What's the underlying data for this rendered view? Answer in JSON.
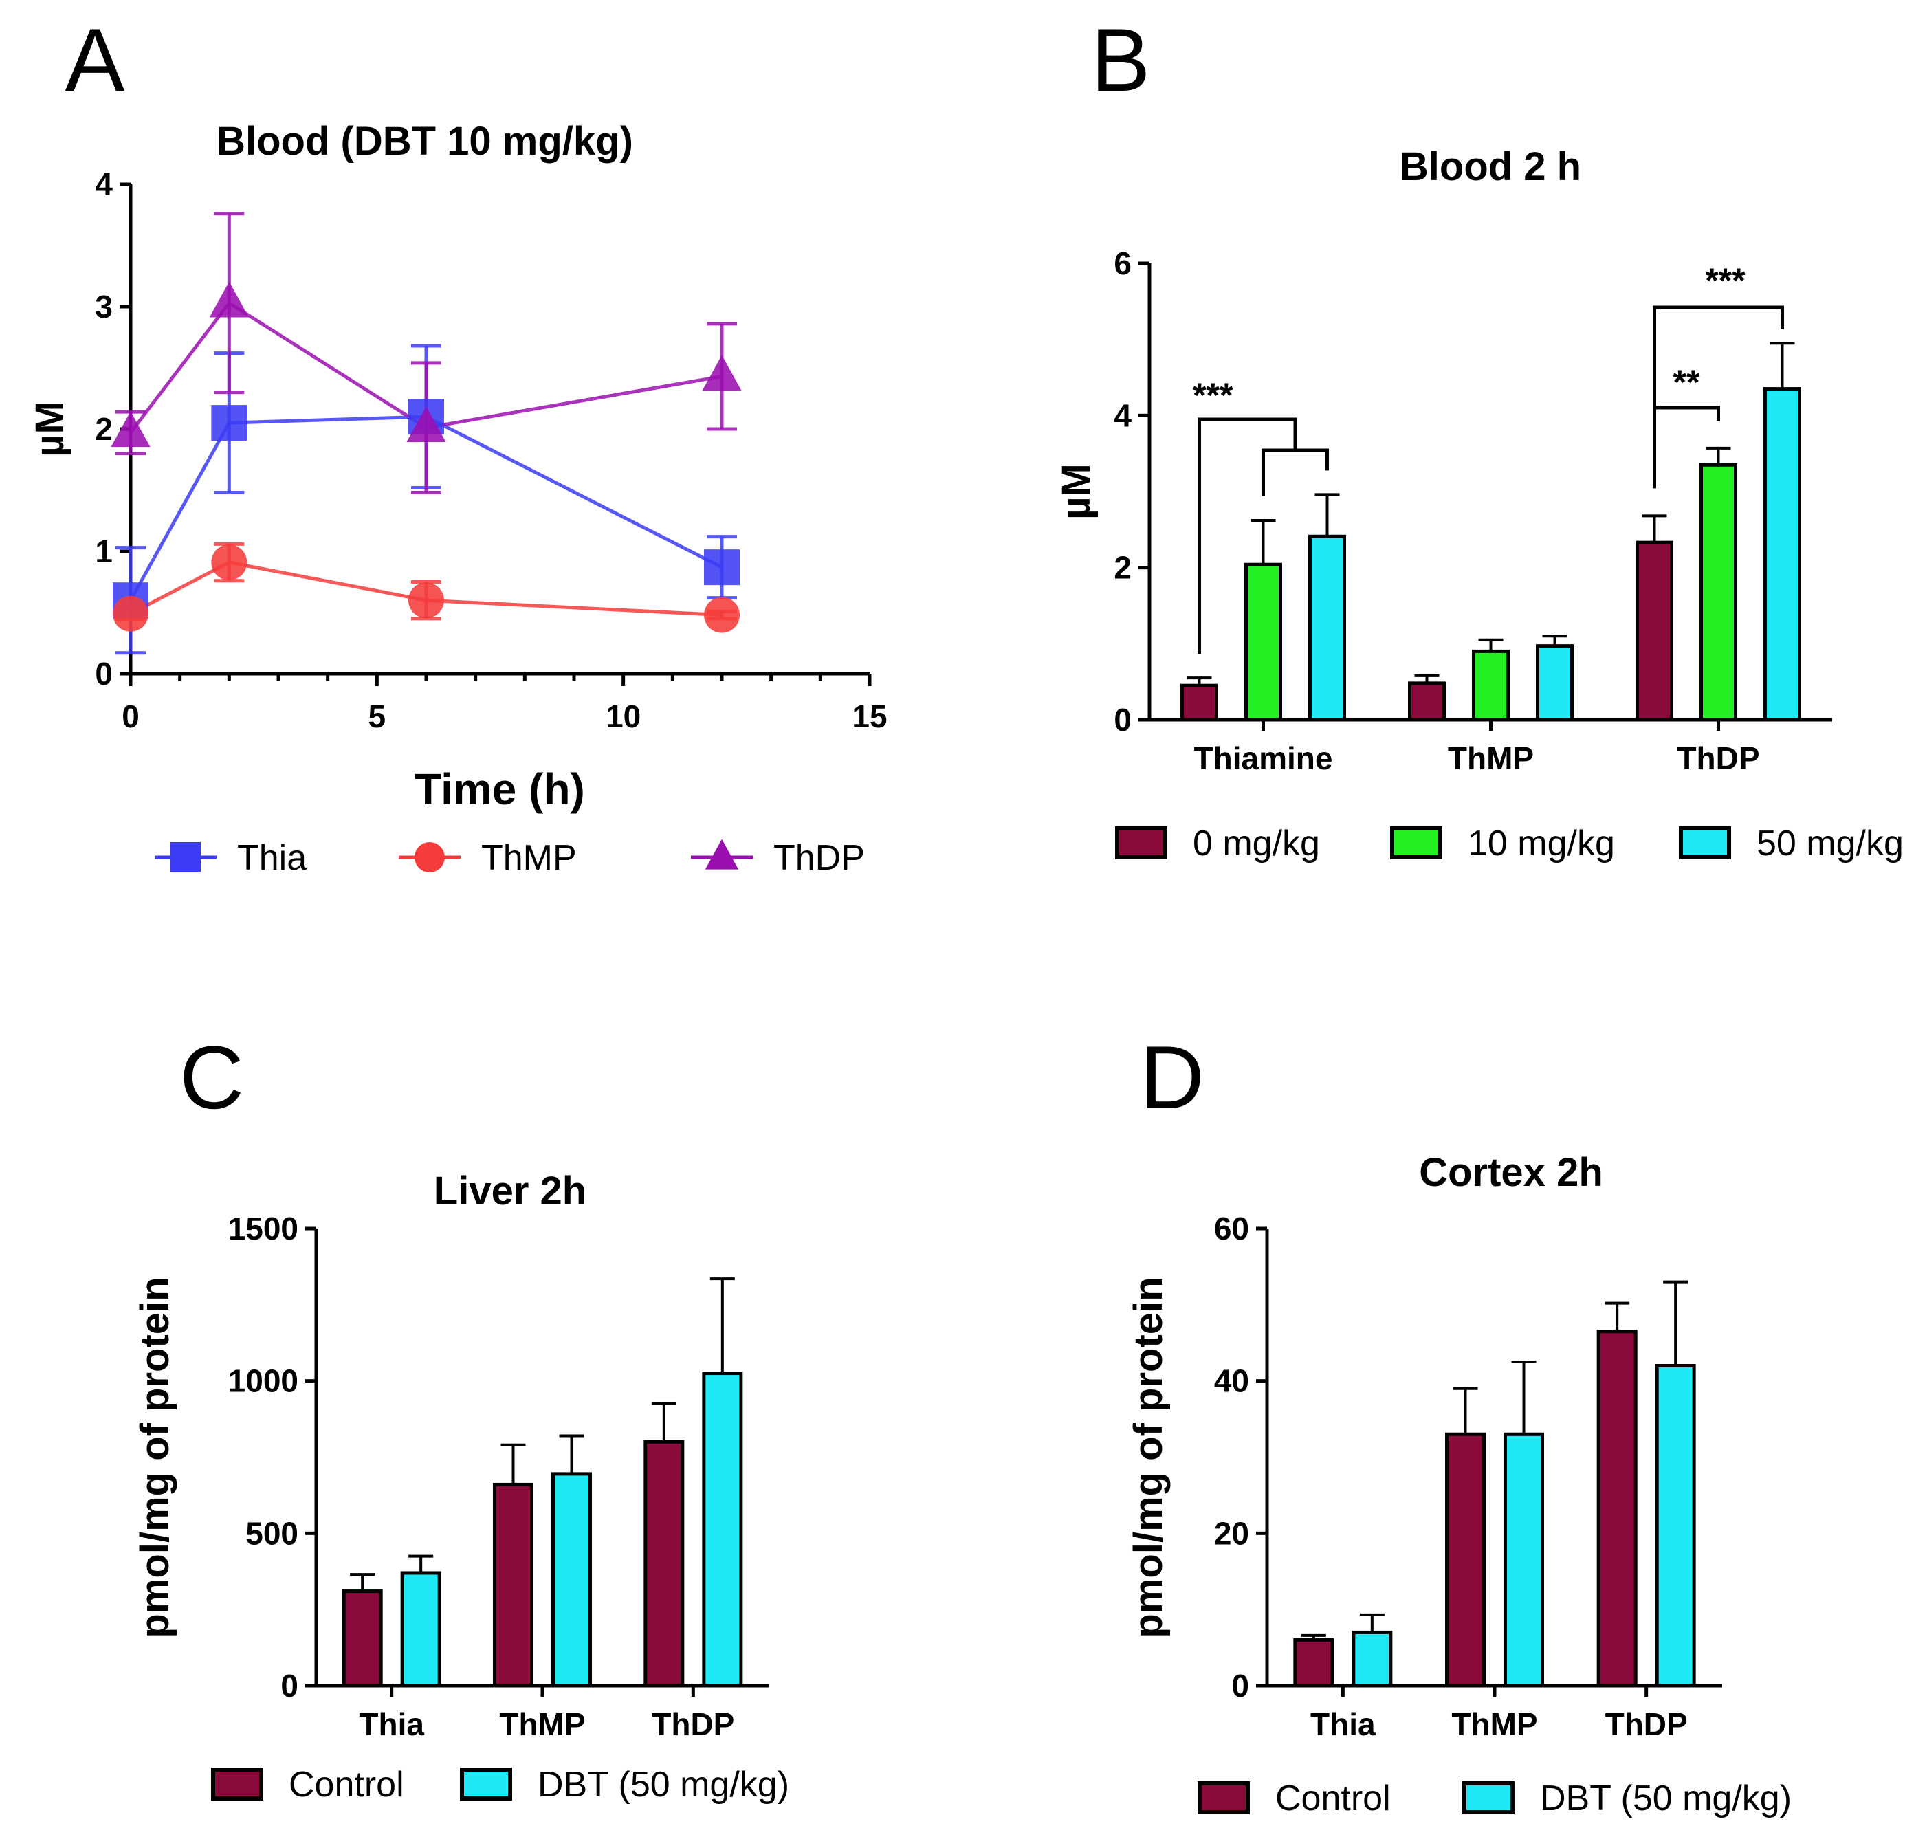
{
  "chart_data": [
    {
      "id": "A",
      "panel_label": "A",
      "type": "line",
      "title": "Blood (DBT 10 mg/kg)",
      "xlabel": "Time (h)",
      "ylabel": "µM",
      "xlim": [
        0,
        15
      ],
      "ylim": [
        0,
        4
      ],
      "xticks": [
        0,
        5,
        10,
        15
      ],
      "yticks": [
        0,
        1,
        2,
        3,
        4
      ],
      "x": [
        0,
        2,
        6,
        12
      ],
      "series": [
        {
          "name": "Thia",
          "color": "#3b3bf5",
          "marker": "square",
          "values": [
            0.6,
            2.05,
            2.1,
            0.87
          ],
          "errors": [
            0.43,
            0.57,
            0.58,
            0.25
          ]
        },
        {
          "name": "ThMP",
          "color": "#f53b3b",
          "marker": "circle",
          "values": [
            0.49,
            0.91,
            0.6,
            0.48
          ],
          "errors": [
            0.05,
            0.15,
            0.15,
            0.03
          ]
        },
        {
          "name": "ThDP",
          "color": "#9b0fb0",
          "marker": "triangle",
          "values": [
            1.97,
            3.03,
            2.01,
            2.43
          ],
          "errors": [
            0.17,
            0.73,
            0.53,
            0.43
          ]
        }
      ],
      "legend_position": "bottom"
    },
    {
      "id": "B",
      "panel_label": "B",
      "type": "bar",
      "title": "Blood 2 h",
      "xlabel": "",
      "ylabel": "µM",
      "ylim": [
        0,
        6
      ],
      "yticks": [
        0,
        2,
        4,
        6
      ],
      "categories": [
        "Thiamine",
        "ThMP",
        "ThDP"
      ],
      "series": [
        {
          "name": "0 mg/kg",
          "color": "#8a0a3c",
          "values": [
            0.45,
            0.48,
            2.33
          ],
          "errors": [
            0.1,
            0.1,
            0.35
          ]
        },
        {
          "name": "10 mg/kg",
          "color": "#22f022",
          "values": [
            2.04,
            0.9,
            3.35
          ],
          "errors": [
            0.58,
            0.15,
            0.22
          ]
        },
        {
          "name": "50 mg/kg",
          "color": "#1ee9f5",
          "values": [
            2.41,
            0.97,
            4.35
          ],
          "errors": [
            0.55,
            0.13,
            0.6
          ]
        }
      ],
      "annotations": [
        {
          "text": "***",
          "category": "Thiamine",
          "comparison": "0 mg/kg vs 10 & 50 mg/kg"
        },
        {
          "text": "**",
          "category": "ThDP",
          "comparison": "0 mg/kg vs 10 mg/kg"
        },
        {
          "text": "***",
          "category": "ThDP",
          "comparison": "0 mg/kg vs 50 mg/kg"
        }
      ],
      "legend_position": "bottom"
    },
    {
      "id": "C",
      "panel_label": "C",
      "type": "bar",
      "title": "Liver 2h",
      "xlabel": "",
      "ylabel": "pmol/mg of protein",
      "ylim": [
        0,
        1500
      ],
      "yticks": [
        0,
        500,
        1000,
        1500
      ],
      "categories": [
        "Thia",
        "ThMP",
        "ThDP"
      ],
      "series": [
        {
          "name": "Control",
          "color": "#8a0a3c",
          "values": [
            310,
            660,
            800
          ],
          "errors": [
            55,
            130,
            125
          ]
        },
        {
          "name": "DBT (50 mg/kg)",
          "color": "#1ee9f5",
          "values": [
            370,
            695,
            1025
          ],
          "errors": [
            55,
            125,
            310
          ]
        }
      ],
      "legend_position": "bottom"
    },
    {
      "id": "D",
      "panel_label": "D",
      "type": "bar",
      "title": "Cortex 2h",
      "xlabel": "",
      "ylabel": "pmol/mg of protein",
      "ylim": [
        0,
        60
      ],
      "yticks": [
        0,
        20,
        40,
        60
      ],
      "categories": [
        "Thia",
        "ThMP",
        "ThDP"
      ],
      "series": [
        {
          "name": "Control",
          "color": "#8a0a3c",
          "values": [
            6,
            33,
            46.5
          ],
          "errors": [
            0.6,
            6,
            3.7
          ]
        },
        {
          "name": "DBT (50 mg/kg)",
          "color": "#1ee9f5",
          "values": [
            7,
            33,
            42
          ],
          "errors": [
            2.3,
            9.5,
            11
          ]
        }
      ],
      "legend_position": "bottom"
    }
  ]
}
